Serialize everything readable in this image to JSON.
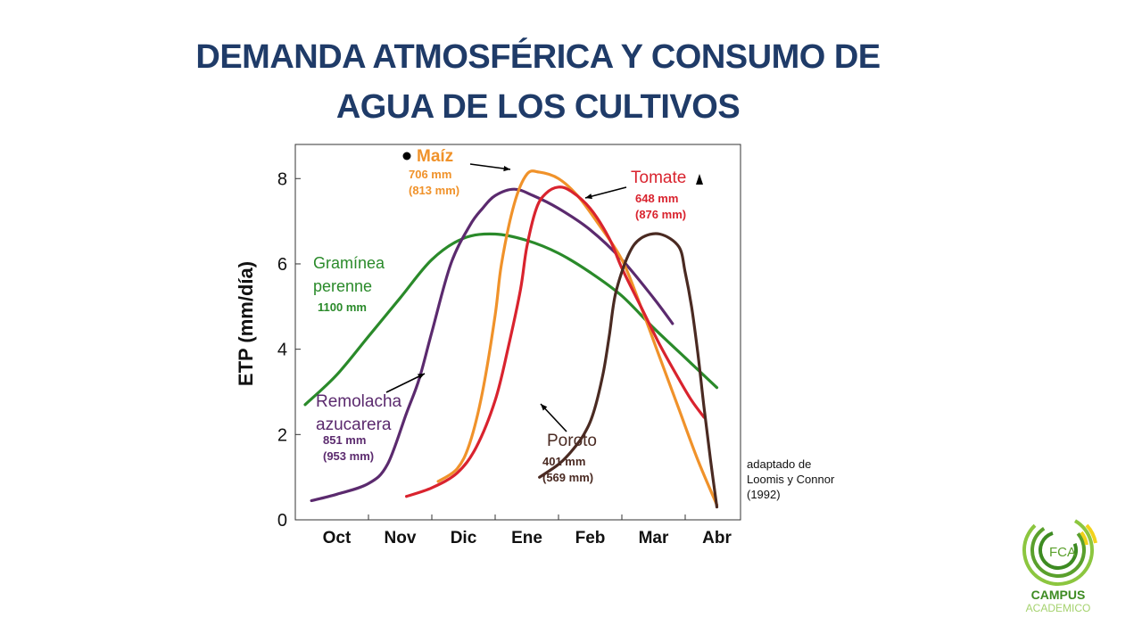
{
  "slide": {
    "title_line1": "DEMANDA ATMOSFÉRICA Y CONSUMO DE",
    "title_line2": "AGUA DE LOS CULTIVOS"
  },
  "chart_data": {
    "type": "line",
    "ylabel": "ETP (mm/día)",
    "xlabel": "",
    "ylim": [
      0,
      8.8
    ],
    "y_ticks": [
      0,
      2,
      4,
      6,
      8
    ],
    "x_range": [
      0,
      7
    ],
    "categories": [
      "Oct",
      "Nov",
      "Dic",
      "Ene",
      "Feb",
      "Mar",
      "Abr"
    ],
    "grid": false,
    "source_note": [
      "adaptado de",
      "Loomis y Connor",
      "(1992)"
    ],
    "series": [
      {
        "name": "Gramínea perenne",
        "label_lines": [
          "Gramínea",
          "perenne"
        ],
        "totals": [
          "1100 mm"
        ],
        "color": "#2a8a2a",
        "x": [
          0.0,
          0.5,
          1.0,
          1.5,
          2.0,
          2.5,
          3.0,
          3.5,
          4.0,
          4.5,
          5.0,
          5.5,
          6.0,
          6.5
        ],
        "y": [
          2.7,
          3.4,
          4.3,
          5.2,
          6.1,
          6.6,
          6.7,
          6.55,
          6.25,
          5.8,
          5.25,
          4.5,
          3.8,
          3.1
        ]
      },
      {
        "name": "Remolacha azucarera",
        "label_lines": [
          "Remolacha",
          "azucarera"
        ],
        "totals": [
          "851 mm",
          "(953 mm)"
        ],
        "color": "#5b2a6e",
        "x": [
          0.1,
          0.5,
          1.0,
          1.3,
          1.6,
          1.8,
          2.0,
          2.3,
          2.6,
          2.8,
          3.0,
          3.3,
          3.6,
          4.0,
          4.5,
          5.0,
          5.5,
          5.8
        ],
        "y": [
          0.45,
          0.6,
          0.85,
          1.3,
          2.5,
          3.3,
          4.4,
          6.0,
          6.9,
          7.3,
          7.6,
          7.75,
          7.6,
          7.3,
          6.8,
          6.1,
          5.2,
          4.6
        ]
      },
      {
        "name": "Maíz",
        "label_lines": [
          "Maíz"
        ],
        "totals": [
          "706 mm",
          "(813 mm)"
        ],
        "color": "#f0922a",
        "x": [
          2.1,
          2.4,
          2.6,
          2.8,
          3.0,
          3.1,
          3.3,
          3.5,
          3.7,
          4.0,
          4.3,
          4.6,
          5.0,
          5.3,
          5.6,
          5.9,
          6.2,
          6.5
        ],
        "y": [
          0.9,
          1.2,
          1.8,
          3.0,
          4.8,
          6.0,
          7.4,
          8.1,
          8.15,
          8.0,
          7.6,
          7.0,
          6.1,
          5.0,
          3.8,
          2.6,
          1.4,
          0.35
        ]
      },
      {
        "name": "Tomate",
        "label_lines": [
          "Tomate"
        ],
        "totals": [
          "648 mm",
          "(876 mm)"
        ],
        "color": "#d9232e",
        "x": [
          1.6,
          2.0,
          2.4,
          2.7,
          3.0,
          3.2,
          3.4,
          3.5,
          3.65,
          3.8,
          4.0,
          4.2,
          4.5,
          4.8,
          5.0,
          5.3,
          5.6,
          5.9,
          6.1,
          6.3
        ],
        "y": [
          0.55,
          0.75,
          1.1,
          1.7,
          2.8,
          4.0,
          5.4,
          6.4,
          7.3,
          7.65,
          7.8,
          7.7,
          7.3,
          6.6,
          5.9,
          5.0,
          4.1,
          3.3,
          2.8,
          2.4
        ]
      },
      {
        "name": "Poroto",
        "label_lines": [
          "Poroto"
        ],
        "totals": [
          "401 mm",
          "(569 mm)"
        ],
        "color": "#4a2a22",
        "x": [
          3.7,
          4.0,
          4.2,
          4.4,
          4.55,
          4.7,
          4.8,
          4.9,
          5.1,
          5.3,
          5.6,
          5.9,
          6.0,
          6.1,
          6.2,
          6.3,
          6.4,
          6.5
        ],
        "y": [
          1.0,
          1.3,
          1.6,
          2.0,
          2.5,
          3.4,
          4.3,
          5.3,
          6.2,
          6.6,
          6.7,
          6.4,
          5.8,
          5.0,
          3.9,
          2.6,
          1.4,
          0.3
        ]
      }
    ]
  }
}
